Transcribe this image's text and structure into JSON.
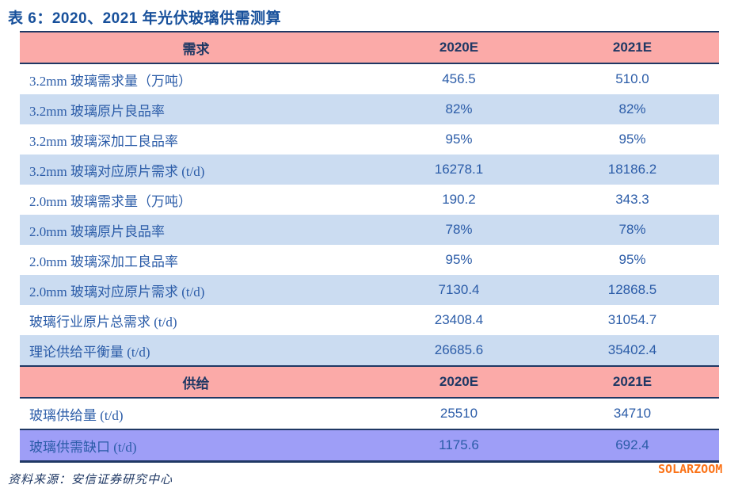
{
  "title": "表 6：2020、2021 年光伏玻璃供需测算",
  "columns": {
    "col_2020": "2020E",
    "col_2021": "2021E"
  },
  "sections": {
    "demand_header": "需求",
    "supply_header": "供给"
  },
  "rows": [
    {
      "label": "3.2mm 玻璃需求量（万吨）",
      "y2020": "456.5",
      "y2021": "510.0"
    },
    {
      "label": "3.2mm 玻璃原片良品率",
      "y2020": "82%",
      "y2021": "82%"
    },
    {
      "label": "3.2mm 玻璃深加工良品率",
      "y2020": "95%",
      "y2021": "95%"
    },
    {
      "label": "3.2mm 玻璃对应原片需求 (t/d)",
      "y2020": "16278.1",
      "y2021": "18186.2"
    },
    {
      "label": "2.0mm 玻璃需求量（万吨）",
      "y2020": "190.2",
      "y2021": "343.3"
    },
    {
      "label": "2.0mm 玻璃原片良品率",
      "y2020": "78%",
      "y2021": "78%"
    },
    {
      "label": "2.0mm 玻璃深加工良品率",
      "y2020": "95%",
      "y2021": "95%"
    },
    {
      "label": "2.0mm 玻璃对应原片需求 (t/d)",
      "y2020": "7130.4",
      "y2021": "12868.5"
    },
    {
      "label": "玻璃行业原片总需求 (t/d)",
      "y2020": "23408.4",
      "y2021": "31054.7"
    },
    {
      "label": "理论供给平衡量 (t/d)",
      "y2020": "26685.6",
      "y2021": "35402.4"
    },
    {
      "label": "玻璃供给量 (t/d)",
      "y2020": "25510",
      "y2021": "34710"
    },
    {
      "label": "玻璃供需缺口 (t/d)",
      "y2020": "1175.6",
      "y2021": "692.4"
    }
  ],
  "footer": {
    "source": "资料来源：安信证券研究中心",
    "watermark": "SOLARZOOM"
  },
  "colors": {
    "header_pink": "#FBAAA8",
    "row_blue": "#CBDCF1",
    "gap_purple": "#9E9EF7",
    "border_navy": "#1F3864",
    "text_blue": "#2B5CA8",
    "title_blue": "#17509B",
    "watermark_orange": "#FB7318"
  }
}
